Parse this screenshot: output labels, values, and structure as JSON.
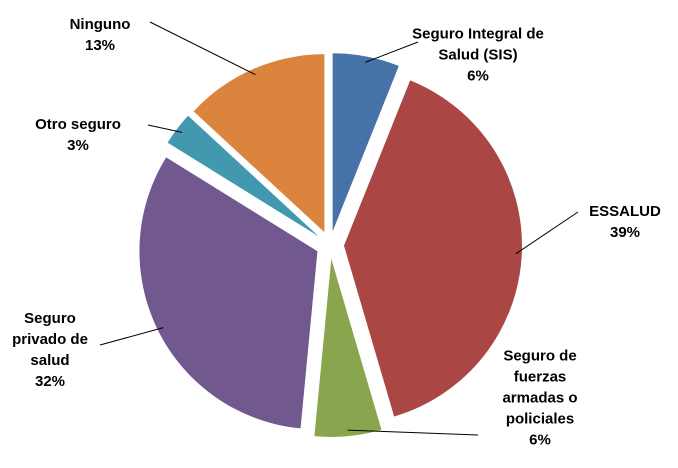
{
  "chart_data": {
    "type": "pie",
    "categories": [
      "Seguro Integral de Salud (SIS)",
      "ESSALUD",
      "Seguro de fuerzas armadas o policiales",
      "Seguro privado de salud",
      "Otro seguro",
      "Ninguno"
    ],
    "values": [
      6,
      39,
      6,
      32,
      3,
      13
    ],
    "value_labels": [
      "6%",
      "39%",
      "6%",
      "32%",
      "3%",
      "13%"
    ],
    "colors": [
      "#4572a7",
      "#aa4643",
      "#89a54e",
      "#71588f",
      "#4198af",
      "#db843d"
    ]
  }
}
